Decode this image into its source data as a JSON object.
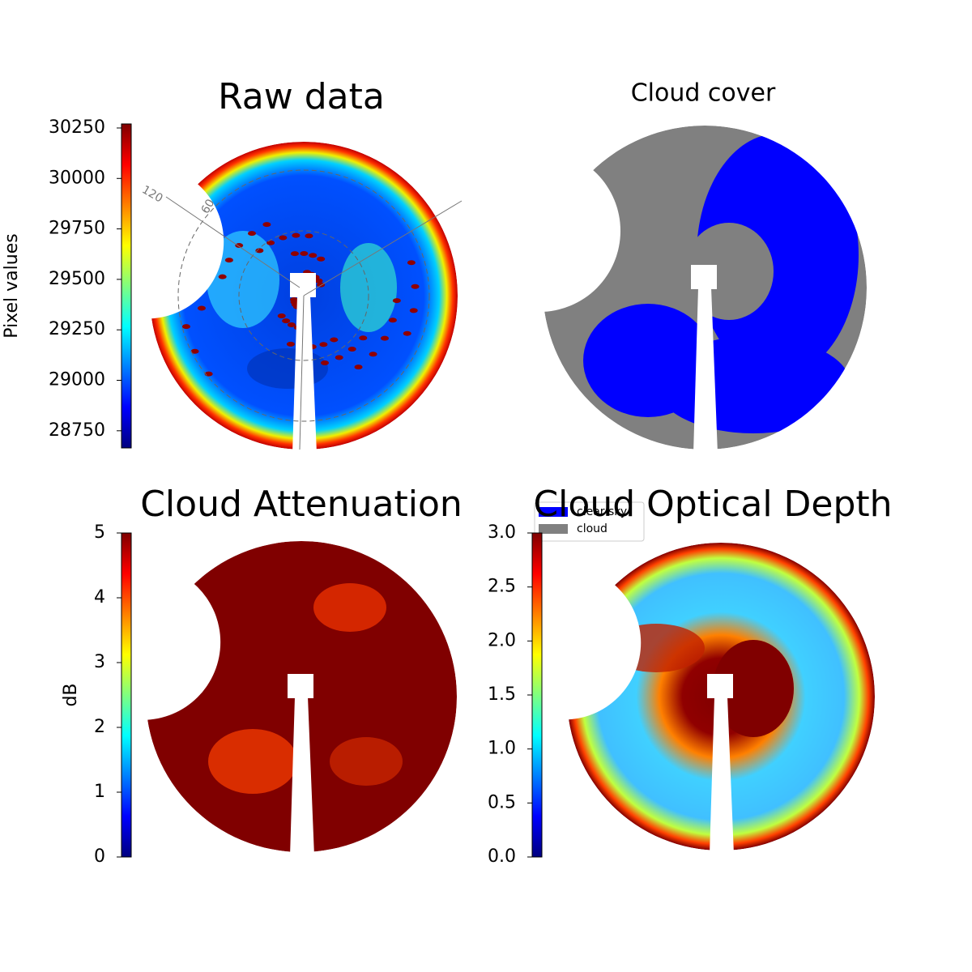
{
  "chart_data": [
    {
      "type": "image",
      "title": "Raw data",
      "ylabel": "Pixel values",
      "colormap": "jet",
      "ylim": [
        28665,
        30270
      ],
      "yticks": [
        28750,
        29000,
        29250,
        29500,
        29750,
        30000,
        30250
      ],
      "annotations": [
        "120",
        "60"
      ]
    },
    {
      "type": "image",
      "title": "Cloud cover",
      "series": [
        {
          "name": "clear sky",
          "color": "#0000ff"
        },
        {
          "name": "cloud",
          "color": "#808080"
        }
      ]
    },
    {
      "type": "image",
      "title": "Cloud Attenuation",
      "ylabel": "dB",
      "colormap": "jet",
      "ylim": [
        0,
        5
      ],
      "yticks": [
        0,
        1,
        2,
        3,
        4,
        5
      ]
    },
    {
      "type": "image",
      "title": "Cloud Optical Depth",
      "colormap": "jet",
      "ylim": [
        0,
        3
      ],
      "yticks": [
        {
          "value": 0,
          "label": "0.0"
        },
        {
          "value": 0.5,
          "label": "0.5"
        },
        {
          "value": 1,
          "label": "1.0"
        },
        {
          "value": 1.5,
          "label": "1.5"
        },
        {
          "value": 2,
          "label": "2.0"
        },
        {
          "value": 2.5,
          "label": "2.5"
        },
        {
          "value": 3,
          "label": "3.0"
        }
      ]
    }
  ]
}
